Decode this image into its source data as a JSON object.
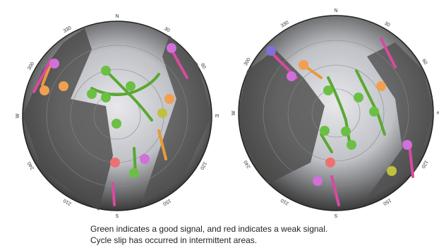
{
  "plots": [
    {
      "compass": [
        "N",
        "30",
        "60",
        "E",
        "120",
        "150",
        "S",
        "210",
        "240",
        "W",
        "300",
        "330"
      ]
    },
    {
      "compass": [
        "N",
        "30",
        "60",
        "E",
        "120",
        "150",
        "S",
        "210",
        "240",
        "W",
        "300",
        "330"
      ]
    }
  ],
  "caption": [
    "Green indicates a good signal, and red indicates a weak signal.",
    "Cycle slip has occurred in intermittent areas."
  ]
}
